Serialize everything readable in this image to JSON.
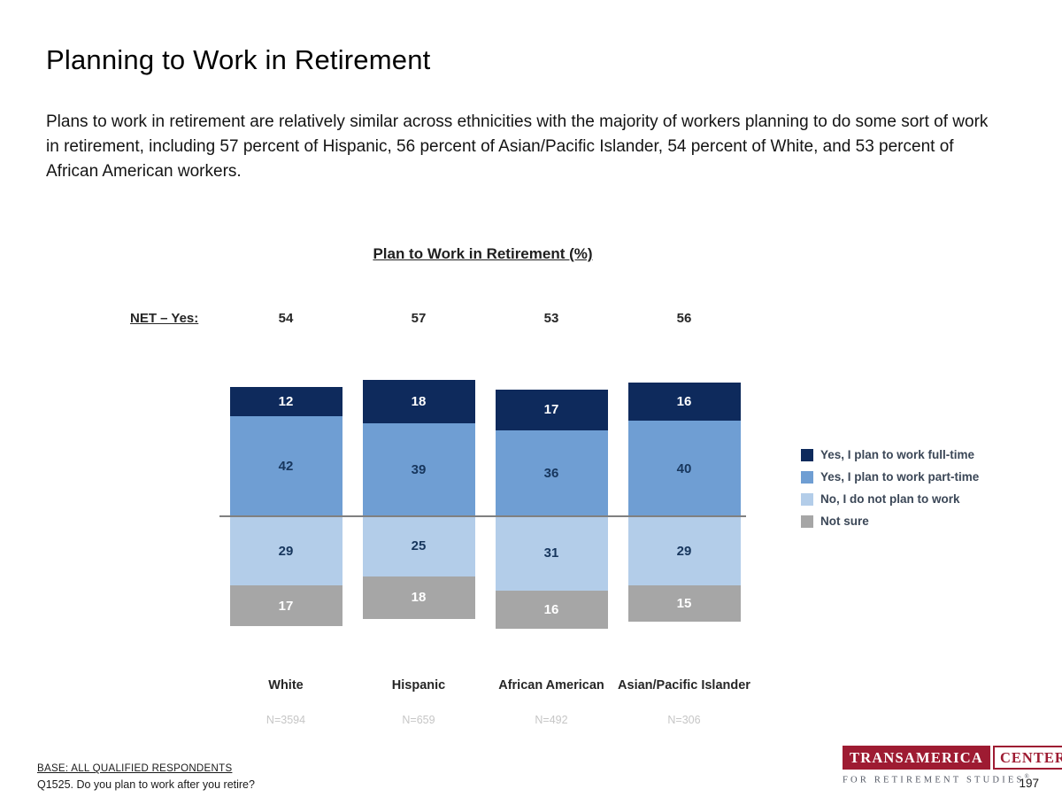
{
  "page": {
    "title": "Planning to Work in Retirement",
    "number": "197"
  },
  "intro": "Plans to work in retirement are relatively similar across ethnicities with the majority of workers planning to do some sort of work in retirement, including 57 percent of Hispanic, 56 percent of Asian/Pacific Islander, 54 percent of White, and 53 percent of African American workers.",
  "chart_data": {
    "type": "bar",
    "variant": "diverging-stacked-column",
    "title": "Plan to Work in Retirement (%)",
    "net_label": "NET – Yes:",
    "categories": [
      "White",
      "Hispanic",
      "African American",
      "Asian/Pacific Islander"
    ],
    "sample_sizes": [
      "N=3594",
      "N=659",
      "N=492",
      "N=306"
    ],
    "net_yes": [
      54,
      57,
      53,
      56
    ],
    "series": [
      {
        "name": "Yes, I plan to work full-time",
        "side": "above",
        "color": "#0e2a5c",
        "label_color": "#ffffff",
        "values": [
          12,
          18,
          17,
          16
        ]
      },
      {
        "name": "Yes, I plan to work part-time",
        "side": "above",
        "color": "#6f9ed3",
        "label_color": "#17365d",
        "values": [
          42,
          39,
          36,
          40
        ]
      },
      {
        "name": "No, I do not plan to work",
        "side": "below",
        "color": "#b3cde9",
        "label_color": "#17365d",
        "values": [
          29,
          25,
          31,
          29
        ]
      },
      {
        "name": "Not sure",
        "side": "below",
        "color": "#a6a6a6",
        "label_color": "#ffffff",
        "values": [
          17,
          18,
          16,
          15
        ]
      }
    ],
    "legend_position": "right",
    "axis_line_color": "#808080",
    "grid": false
  },
  "footer": {
    "base": "BASE: ALL QUALIFIED RESPONDENTS",
    "question": "Q1525. Do you plan to work after you retire?"
  },
  "logo": {
    "part1": "TRANSAMERICA",
    "part2": "CENTER",
    "tagline": "FOR RETIREMENT STUDIES",
    "registered": "®",
    "brand_color": "#9e1b32"
  }
}
